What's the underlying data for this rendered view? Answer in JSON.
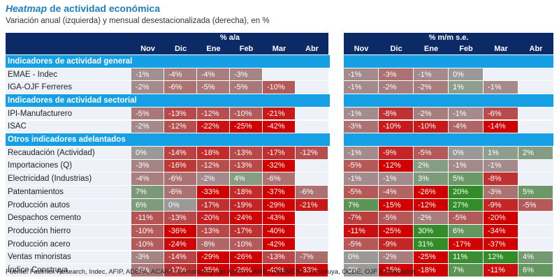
{
  "header": {
    "title_italic": "Heatmap",
    "title_rest": "de actividad económica",
    "subtitle": "Variación anual (izquierda) y mensual desestacionalizada (derecha), en %"
  },
  "table": {
    "panels": [
      "% a/a",
      "% m/m s.e."
    ],
    "months": [
      "Nov",
      "Dic",
      "Ene",
      "Feb",
      "Mar",
      "Abr"
    ],
    "sections": [
      {
        "title": "Indicadores de actividad general",
        "rows": [
          {
            "label": "EMAE - Indec",
            "yoy": [
              "-1%",
              "-4%",
              "-4%",
              "-3%",
              null,
              null
            ],
            "mom": [
              "-1%",
              "-3%",
              "-1%",
              "0%",
              null,
              null
            ]
          },
          {
            "label": "IGA-OJF Ferreres",
            "yoy": [
              "-2%",
              "-6%",
              "-5%",
              "-5%",
              "-10%",
              null
            ],
            "mom": [
              "-1%",
              "-2%",
              "-2%",
              "1%",
              "-1%",
              null
            ]
          }
        ]
      },
      {
        "title": "Indicadores de actividad sectorial",
        "rows": [
          {
            "label": "IPI-Manufacturero",
            "yoy": [
              "-5%",
              "-13%",
              "-12%",
              "-10%",
              "-21%",
              null
            ],
            "mom": [
              "-1%",
              "-8%",
              "-2%",
              "-1%",
              "-6%",
              null
            ]
          },
          {
            "label": "ISAC",
            "yoy": [
              "-2%",
              "-12%",
              "-22%",
              "-25%",
              "-42%",
              null
            ],
            "mom": [
              "-3%",
              "-10%",
              "-10%",
              "-4%",
              "-14%",
              null
            ]
          }
        ]
      },
      {
        "title": "Otros indicadores adelantados",
        "rows": [
          {
            "label": "Recaudación (Actividad)",
            "yoy": [
              "0%",
              "-14%",
              "-18%",
              "-13%",
              "-17%",
              "-12%"
            ],
            "mom": [
              "-1%",
              "-9%",
              "-5%",
              "0%",
              "1%",
              "2%"
            ]
          },
          {
            "label": "Importaciones (Q)",
            "yoy": [
              "-3%",
              "-16%",
              "-12%",
              "-13%",
              "-32%",
              null
            ],
            "mom": [
              "-5%",
              "-12%",
              "2%",
              "-1%",
              "-1%",
              null
            ]
          },
          {
            "label": "Electricidad (Industrias)",
            "yoy": [
              "-4%",
              "-6%",
              "-2%",
              "4%",
              "-6%",
              null
            ],
            "mom": [
              "-1%",
              "-1%",
              "3%",
              "5%",
              "-8%",
              null
            ]
          },
          {
            "label": "Patentamientos",
            "yoy": [
              "7%",
              "-6%",
              "-33%",
              "-18%",
              "-37%",
              "-6%"
            ],
            "mom": [
              "-5%",
              "-4%",
              "-26%",
              "20%",
              "-3%",
              "5%"
            ]
          },
          {
            "label": "Producción autos",
            "yoy": [
              "6%",
              "0%",
              "-17%",
              "-19%",
              "-29%",
              "-21%"
            ],
            "mom": [
              "7%",
              "-15%",
              "-12%",
              "27%",
              "-9%",
              "-5%"
            ]
          },
          {
            "label": "Despachos cemento",
            "yoy": [
              "-11%",
              "-13%",
              "-20%",
              "-24%",
              "-43%",
              null
            ],
            "mom": [
              "-7%",
              "-5%",
              "-2%",
              "-5%",
              "-20%",
              null
            ]
          },
          {
            "label": "Producción hierro",
            "yoy": [
              "-10%",
              "-36%",
              "-13%",
              "-17%",
              "-40%",
              null
            ],
            "mom": [
              "-11%",
              "-25%",
              "30%",
              "6%",
              "-34%",
              null
            ]
          },
          {
            "label": "Producción acero",
            "yoy": [
              "-10%",
              "-24%",
              "-8%",
              "-10%",
              "-42%",
              null
            ],
            "mom": [
              "-5%",
              "-9%",
              "31%",
              "-17%",
              "-37%",
              null
            ]
          },
          {
            "label": "Ventas minoristas",
            "yoy": [
              "-3%",
              "-14%",
              "-29%",
              "-26%",
              "-13%",
              "-7%"
            ],
            "mom": [
              "0%",
              "-2%",
              "-25%",
              "11%",
              "12%",
              "4%"
            ]
          },
          {
            "label": "Índice Construya",
            "yoy": [
              "-5%",
              "-17%",
              "-35%",
              "-26%",
              "-40%",
              "-33%"
            ],
            "mom": [
              "0%",
              "-15%",
              "-18%",
              "7%",
              "-11%",
              "6%"
            ]
          }
        ]
      }
    ]
  },
  "footer": {
    "source": "Fuente: Facimex Research, Indec, AFIP, ADEFA, ACARA, Cámara Arg. del Acero, CAME, CAMMESA, Construya, OCDE, OJF & Asociados"
  }
}
